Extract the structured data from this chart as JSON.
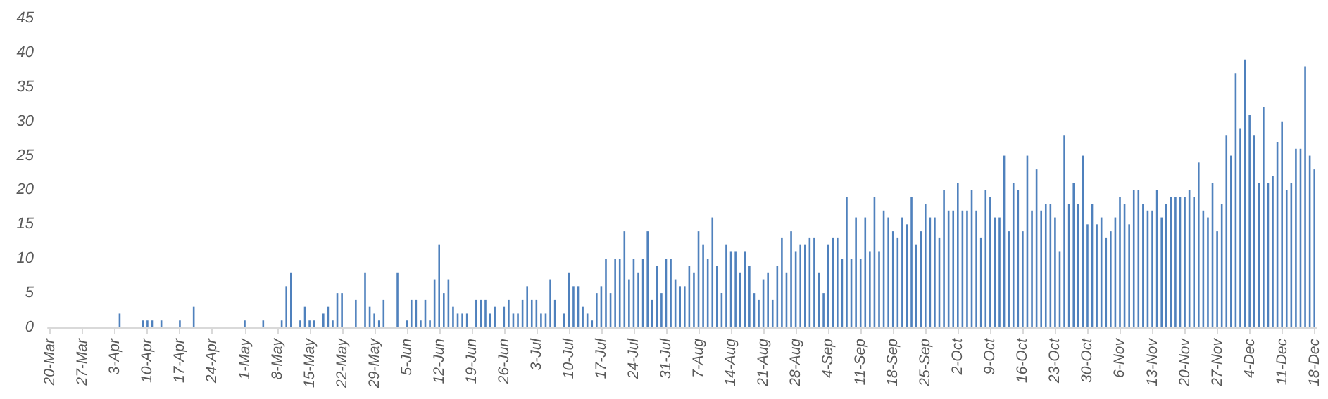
{
  "chart_data": {
    "type": "bar",
    "color": "#4f81bd",
    "ylim": [
      0,
      45
    ],
    "yticks": [
      0,
      5,
      10,
      15,
      20,
      25,
      30,
      35,
      40,
      45
    ],
    "grid": false,
    "categories": [
      "20-Mar",
      null,
      null,
      null,
      null,
      null,
      null,
      "27-Mar",
      null,
      null,
      null,
      null,
      null,
      null,
      "3-Apr",
      null,
      null,
      null,
      null,
      null,
      null,
      "10-Apr",
      null,
      null,
      null,
      null,
      null,
      null,
      "17-Apr",
      null,
      null,
      null,
      null,
      null,
      null,
      "24-Apr",
      null,
      null,
      null,
      null,
      null,
      null,
      "1-May",
      null,
      null,
      null,
      null,
      null,
      null,
      "8-May",
      null,
      null,
      null,
      null,
      null,
      null,
      "15-May",
      null,
      null,
      null,
      null,
      null,
      null,
      "22-May",
      null,
      null,
      null,
      null,
      null,
      null,
      "29-May",
      null,
      null,
      null,
      null,
      null,
      null,
      "5-Jun",
      null,
      null,
      null,
      null,
      null,
      null,
      "12-Jun",
      null,
      null,
      null,
      null,
      null,
      null,
      "19-Jun",
      null,
      null,
      null,
      null,
      null,
      null,
      "26-Jun",
      null,
      null,
      null,
      null,
      null,
      null,
      "3-Jul",
      null,
      null,
      null,
      null,
      null,
      null,
      "10-Jul",
      null,
      null,
      null,
      null,
      null,
      null,
      "17-Jul",
      null,
      null,
      null,
      null,
      null,
      null,
      "24-Jul",
      null,
      null,
      null,
      null,
      null,
      null,
      "31-Jul",
      null,
      null,
      null,
      null,
      null,
      null,
      "7-Aug",
      null,
      null,
      null,
      null,
      null,
      null,
      "14-Aug",
      null,
      null,
      null,
      null,
      null,
      null,
      "21-Aug",
      null,
      null,
      null,
      null,
      null,
      null,
      "28-Aug",
      null,
      null,
      null,
      null,
      null,
      null,
      "4-Sep",
      null,
      null,
      null,
      null,
      null,
      null,
      "11-Sep",
      null,
      null,
      null,
      null,
      null,
      null,
      "18-Sep",
      null,
      null,
      null,
      null,
      null,
      null,
      "25-Sep",
      null,
      null,
      null,
      null,
      null,
      null,
      "2-Oct",
      null,
      null,
      null,
      null,
      null,
      null,
      "9-Oct",
      null,
      null,
      null,
      null,
      null,
      null,
      "16-Oct",
      null,
      null,
      null,
      null,
      null,
      null,
      "23-Oct",
      null,
      null,
      null,
      null,
      null,
      null,
      "30-Oct",
      null,
      null,
      null,
      null,
      null,
      null,
      "6-Nov",
      null,
      null,
      null,
      null,
      null,
      null,
      "13-Nov",
      null,
      null,
      null,
      null,
      null,
      null,
      "20-Nov",
      null,
      null,
      null,
      null,
      null,
      null,
      "27-Nov",
      null,
      null,
      null,
      null,
      null,
      null,
      "4-Dec",
      null,
      null,
      null,
      null,
      null,
      null,
      "11-Dec",
      null,
      null,
      null,
      null,
      null,
      null,
      "18-Dec"
    ],
    "values": [
      0,
      0,
      0,
      0,
      0,
      0,
      0,
      0,
      0,
      0,
      0,
      0,
      0,
      0,
      0,
      2,
      0,
      0,
      0,
      0,
      1,
      1,
      1,
      0,
      1,
      0,
      0,
      0,
      1,
      0,
      0,
      3,
      0,
      0,
      0,
      0,
      0,
      0,
      0,
      0,
      0,
      0,
      1,
      0,
      0,
      0,
      1,
      0,
      0,
      0,
      1,
      6,
      8,
      0,
      1,
      3,
      1,
      1,
      0,
      2,
      3,
      1,
      5,
      5,
      0,
      0,
      4,
      0,
      8,
      3,
      2,
      1,
      4,
      0,
      0,
      8,
      0,
      1,
      4,
      4,
      1,
      4,
      1,
      7,
      12,
      5,
      7,
      3,
      2,
      2,
      2,
      0,
      4,
      4,
      4,
      2,
      3,
      0,
      3,
      4,
      2,
      2,
      4,
      6,
      4,
      4,
      2,
      2,
      7,
      4,
      0,
      2,
      8,
      6,
      6,
      3,
      2,
      1,
      5,
      6,
      10,
      5,
      10,
      10,
      14,
      7,
      10,
      8,
      10,
      14,
      4,
      9,
      5,
      10,
      10,
      7,
      6,
      6,
      9,
      8,
      14,
      12,
      10,
      16,
      9,
      5,
      12,
      11,
      11,
      8,
      11,
      9,
      5,
      4,
      7,
      8,
      4,
      9,
      13,
      8,
      14,
      11,
      12,
      12,
      13,
      13,
      8,
      5,
      12,
      13,
      13,
      10,
      19,
      10,
      16,
      10,
      16,
      11,
      19,
      11,
      17,
      16,
      14,
      13,
      16,
      15,
      19,
      12,
      14,
      18,
      16,
      16,
      13,
      20,
      17,
      17,
      21,
      17,
      17,
      20,
      17,
      13,
      20,
      19,
      16,
      16,
      25,
      14,
      21,
      20,
      14,
      25,
      17,
      23,
      17,
      18,
      18,
      16,
      11,
      28,
      18,
      21,
      18,
      25,
      15,
      18,
      15,
      16,
      13,
      14,
      16,
      19,
      18,
      15,
      20,
      20,
      18,
      17,
      17,
      20,
      16,
      18,
      19,
      19,
      19,
      19,
      20,
      19,
      24,
      17,
      16,
      21,
      14,
      18,
      28,
      25,
      37,
      29,
      39,
      31,
      28,
      21,
      32,
      21,
      22,
      27,
      30,
      20,
      21,
      26,
      26,
      38,
      25,
      23
    ]
  }
}
